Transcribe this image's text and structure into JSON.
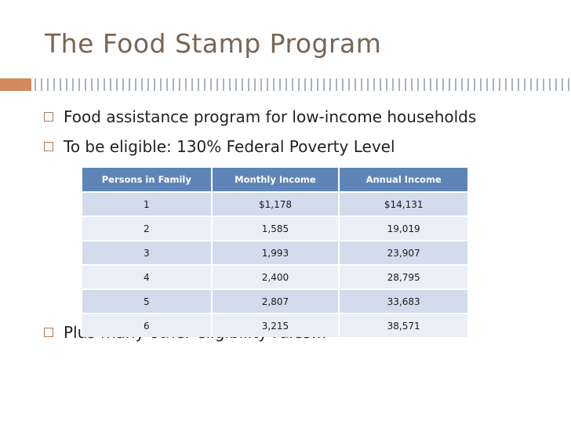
{
  "slide": {
    "title": "The Food Stamp Program",
    "bullets": [
      "Food assistance program for low-income households",
      "To be eligible: 130% Federal Poverty Level",
      "Plus many other eligibility rules…"
    ]
  },
  "table": {
    "headers": [
      "Persons in Family",
      "Monthly Income",
      "Annual Income"
    ],
    "rows": [
      [
        "1",
        "$1,178",
        "$14,131"
      ],
      [
        "2",
        "1,585",
        "19,019"
      ],
      [
        "3",
        "1,993",
        "23,907"
      ],
      [
        "4",
        "2,400",
        "28,795"
      ],
      [
        "5",
        "2,807",
        "33,683"
      ],
      [
        "6",
        "3,215",
        "38,571"
      ]
    ]
  },
  "colors": {
    "title": "#7a6553",
    "accent": "#d28a5c",
    "header_fill": "#5f85b8",
    "row_dark": "#d3dced",
    "row_light": "#eaeef5"
  }
}
